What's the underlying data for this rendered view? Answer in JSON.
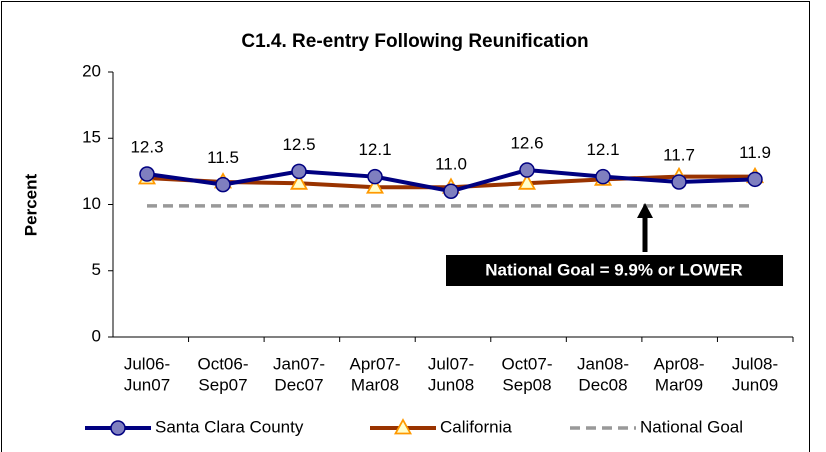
{
  "chart_data": {
    "type": "line",
    "title": "C1.4. Re-entry Following Reunification",
    "y_label": "Percent",
    "categories": [
      [
        "Jul06-",
        "Jun07"
      ],
      [
        "Oct06-",
        "Sep07"
      ],
      [
        "Jan07-",
        "Dec07"
      ],
      [
        "Apr07-",
        "Mar08"
      ],
      [
        "Jul07-",
        "Jun08"
      ],
      [
        "Oct07-",
        "Sep08"
      ],
      [
        "Jan08-",
        "Dec08"
      ],
      [
        "Apr08-",
        "Mar09"
      ],
      [
        "Jul08-",
        "Jun09"
      ]
    ],
    "series": [
      {
        "name": "Santa Clara County",
        "color": "#000080",
        "marker_color": "#7f7fbf",
        "marker": "circle",
        "values": [
          12.3,
          11.5,
          12.5,
          12.1,
          11.0,
          12.6,
          12.1,
          11.7,
          11.9
        ],
        "value_labels": [
          "12.3",
          "11.5",
          "12.5",
          "12.1",
          "11.0",
          "12.6",
          "12.1",
          "11.7",
          "11.9"
        ]
      },
      {
        "name": "California",
        "color": "#993300",
        "marker_color": "#ff9900",
        "marker": "triangle",
        "values": [
          12.0,
          11.7,
          11.6,
          11.3,
          11.3,
          11.6,
          11.9,
          12.1,
          12.1
        ]
      },
      {
        "name": "National Goal",
        "color": "#999999",
        "dashed": true,
        "values": [
          9.9,
          9.9,
          9.9,
          9.9,
          9.9,
          9.9,
          9.9,
          9.9,
          9.9
        ]
      }
    ],
    "annotation": "National Goal = 9.9% or LOWER",
    "ylim": [
      0,
      20
    ],
    "yticks": [
      0,
      5,
      10,
      15,
      20
    ],
    "grid": false,
    "legend": "bottom"
  }
}
